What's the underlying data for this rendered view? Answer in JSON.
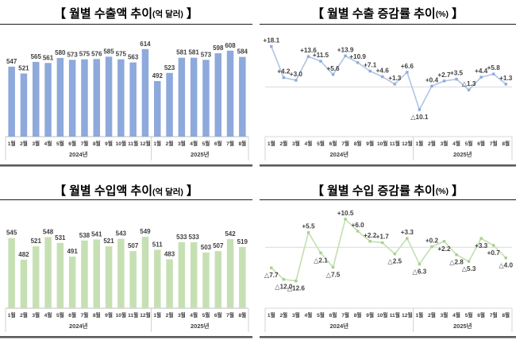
{
  "page": {
    "background": "#ffffff"
  },
  "chart_data": {
    "axis": {
      "groups": [
        {
          "year": "2024년",
          "months": [
            "1월",
            "2월",
            "3월",
            "4월",
            "5월",
            "6월",
            "7월",
            "8월",
            "9월",
            "10월",
            "11월",
            "12월"
          ]
        },
        {
          "year": "2025년",
          "months": [
            "1월",
            "2월",
            "3월",
            "4월",
            "5월",
            "6월",
            "7월",
            "8월"
          ]
        }
      ]
    },
    "charts": [
      {
        "id": "export-amount",
        "type": "bar",
        "title_open": "【",
        "title_main": "월별 수출액 추이",
        "title_unit": "(억 달러)",
        "title_close": "】",
        "bar_color": "#8EA9DB",
        "label_color": "#3f3f3f",
        "ylim": [
          280,
          680
        ],
        "values": [
          547,
          521,
          565,
          561,
          580,
          573,
          575,
          576,
          585,
          575,
          563,
          614,
          492,
          523,
          581,
          581,
          573,
          598,
          608,
          584
        ],
        "labels": [
          "547",
          "521",
          "565",
          "561",
          "580",
          "573",
          "575",
          "576",
          "585",
          "575",
          "563",
          "614",
          "492",
          "523",
          "581",
          "581",
          "573",
          "598",
          "608",
          "584"
        ]
      },
      {
        "id": "export-growth",
        "type": "line",
        "title_open": "【",
        "title_main": "월별 수출 증감률 추이",
        "title_unit": "(%)",
        "title_close": "】",
        "line_color": "#B4C7E7",
        "marker_color": "#8FAADC",
        "label_color": "#3f3f3f",
        "ylim": [
          -20,
          25
        ],
        "values": [
          18.1,
          4.2,
          3.0,
          13.6,
          11.5,
          5.6,
          13.9,
          10.9,
          7.1,
          4.6,
          1.3,
          6.6,
          -10.1,
          0.4,
          2.7,
          3.5,
          -1.3,
          4.4,
          5.8,
          1.3
        ],
        "labels": [
          "+18.1",
          "+4.2",
          "+3.0",
          "+13.6",
          "+11.5",
          "+5.6",
          "+13.9",
          "+10.9",
          "+7.1",
          "+4.6",
          "+1.3",
          "+6.6",
          "△10.1",
          "+0.4",
          "+2.7",
          "+3.5",
          "△1.3",
          "+4.4",
          "+5.8",
          "+1.3"
        ],
        "label_pos": [
          "a",
          "a",
          "a",
          "a",
          "a",
          "a",
          "a",
          "a",
          "a",
          "a",
          "a",
          "a",
          "b",
          "a",
          "a",
          "a",
          "a",
          "a",
          "a",
          "a"
        ]
      },
      {
        "id": "import-amount",
        "type": "bar",
        "title_open": "【",
        "title_main": "월별 수입액 추이",
        "title_unit": "(억 달러)",
        "title_close": "】",
        "bar_color": "#C6E0B4",
        "label_color": "#3f3f3f",
        "ylim": [
          340,
          635
        ],
        "values": [
          545,
          482,
          521,
          548,
          531,
          491,
          538,
          541,
          521,
          543,
          507,
          549,
          511,
          483,
          533,
          533,
          503,
          507,
          542,
          519
        ],
        "labels": [
          "545",
          "482",
          "521",
          "548",
          "531",
          "491",
          "538",
          "541",
          "521",
          "543",
          "507",
          "549",
          "511",
          "483",
          "533",
          "533",
          "503",
          "507",
          "542",
          "519"
        ]
      },
      {
        "id": "import-growth",
        "type": "line",
        "title_open": "【",
        "title_main": "월별 수입 증감률 추이",
        "title_unit": "(%)",
        "title_close": "】",
        "line_color": "#C6E0B4",
        "marker_color": "#A9D08E",
        "label_color": "#3f3f3f",
        "ylim": [
          -21,
          14
        ],
        "values": [
          -7.7,
          -12.0,
          -12.6,
          5.5,
          -2.1,
          -7.5,
          10.5,
          6.0,
          2.2,
          1.7,
          -2.5,
          3.3,
          -6.3,
          0.2,
          2.2,
          -2.8,
          -5.3,
          3.3,
          0.7,
          -4.0
        ],
        "labels": [
          "△7.7",
          "△12.0",
          "△12.6",
          "+5.5",
          "△2.1",
          "△7.5",
          "+10.5",
          "+6.0",
          "+2.2",
          "+1.7",
          "△2.5",
          "+3.3",
          "△6.3",
          "+0.2",
          "+2.2",
          "△2.8",
          "△5.3",
          "+3.3",
          "+0.7",
          "△4.0"
        ],
        "label_pos": [
          "b",
          "b",
          "b",
          "a",
          "b",
          "b",
          "a",
          "a",
          "a",
          "a",
          "b",
          "a",
          "b",
          "a",
          "b",
          "b",
          "b",
          "b",
          "b",
          "b"
        ]
      }
    ],
    "style": {
      "zero_line_color": "#D9D9D9",
      "axis_line_color": "#BFBFBF",
      "separator_color": "#C9C9C9",
      "bottom_rule_color": "#5A5A5A",
      "tick_label_color": "#3f3f3f"
    }
  }
}
